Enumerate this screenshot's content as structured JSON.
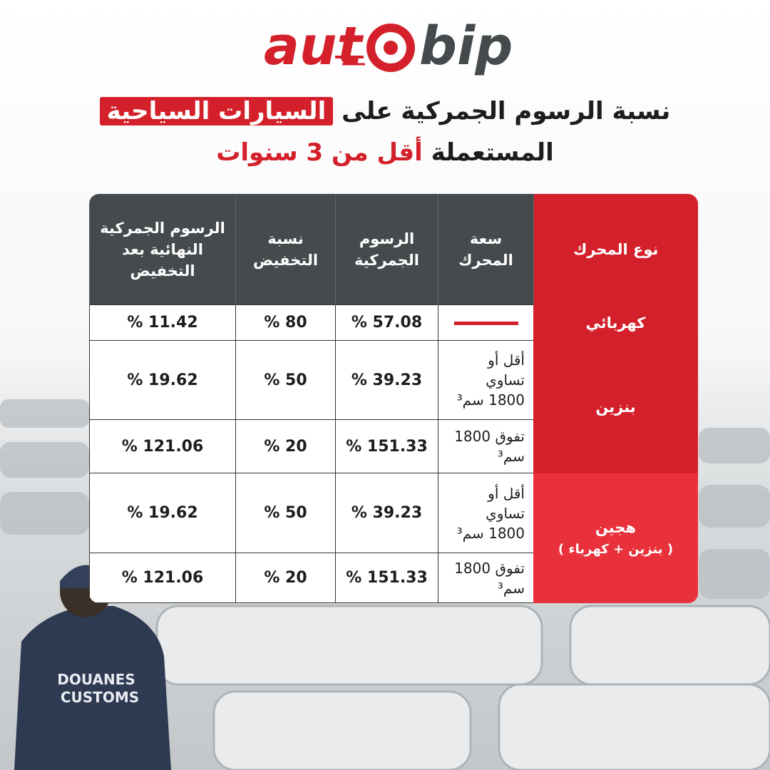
{
  "logo": {
    "left": "aut",
    "right": "bip"
  },
  "title": {
    "line1": "نسبة الرسوم الجمركية على",
    "line1_highlight": "السيارات السياحية",
    "line2": "المستعملة",
    "line2_highlight": "أقل من 3 سنوات"
  },
  "table": {
    "headers": [
      "نوع المحرك",
      "سعة المحرك",
      "الرسوم الجمركية",
      "نسبة التخفيض",
      "الرسوم الجمركية النهائية بعد التخفيض"
    ],
    "groups": [
      {
        "type": "كهربائي",
        "rows": [
          [
            "% 57.08",
            "% 80",
            "% 11.42"
          ]
        ]
      },
      {
        "type": "بنزين",
        "capacities": [
          "أقل أو تساوي 1800 سم³",
          "تفوق 1800 سم³"
        ],
        "rows": [
          [
            "% 39.23",
            "% 50",
            "% 19.62"
          ],
          [
            "% 151.33",
            "% 20",
            "% 121.06"
          ]
        ]
      },
      {
        "type": "هجين",
        "subtype": "( بنزين + كهرباء )",
        "capacities": [
          "أقل أو تساوي 1800 سم³",
          "تفوق 1800 سم³"
        ],
        "rows": [
          [
            "% 39.23",
            "% 50",
            "% 19.62"
          ],
          [
            "% 151.33",
            "% 20",
            "% 121.06"
          ]
        ]
      }
    ]
  }
}
